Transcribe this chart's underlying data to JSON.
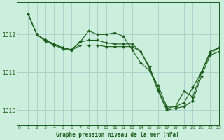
{
  "title": "Graphe pression niveau de la mer (hPa)",
  "bg_color": "#cceedd",
  "grid_color": "#aacccc",
  "line_color": "#1a5c1a",
  "marker_color": "#1a5c1a",
  "xlim": [
    -0.3,
    23
  ],
  "ylim": [
    1009.6,
    1012.85
  ],
  "yticks": [
    1010,
    1011,
    1012
  ],
  "xticks": [
    0,
    1,
    2,
    3,
    4,
    5,
    6,
    7,
    8,
    9,
    10,
    11,
    12,
    13,
    14,
    15,
    16,
    17,
    18,
    19,
    20,
    21,
    22,
    23
  ],
  "series1_x": [
    1,
    2,
    3,
    4,
    5,
    6,
    7,
    8,
    9,
    10,
    11,
    12,
    13,
    14,
    15,
    16,
    17,
    18,
    19,
    20,
    21,
    22,
    23
  ],
  "series1_y": [
    1012.55,
    1012.0,
    1011.85,
    1011.75,
    1011.65,
    1011.6,
    1011.8,
    1012.1,
    1012.0,
    1012.0,
    1012.05,
    1011.95,
    1011.6,
    1011.25,
    1011.05,
    1010.65,
    1010.1,
    1010.1,
    1010.2,
    1010.6,
    1011.0,
    1011.55,
    1011.65
  ],
  "series2_x": [
    1,
    2,
    3,
    4,
    5,
    6,
    7,
    8,
    9,
    10,
    11,
    12,
    13,
    14,
    15,
    16,
    17,
    18,
    19,
    20,
    21,
    22,
    23
  ],
  "series2_y": [
    1012.55,
    1012.0,
    1011.85,
    1011.75,
    1011.65,
    1011.6,
    1011.8,
    1011.85,
    1011.85,
    1011.78,
    1011.75,
    1011.75,
    1011.75,
    1011.55,
    1011.15,
    1010.55,
    1010.05,
    1010.1,
    1010.5,
    1010.35,
    1011.0,
    1011.5,
    1011.65
  ],
  "series3_x": [
    1,
    2,
    3,
    4,
    5,
    6,
    7,
    8,
    9,
    10,
    11,
    12,
    13,
    14,
    15,
    16,
    17,
    18,
    19,
    20,
    21,
    22,
    23
  ],
  "series3_y": [
    1012.55,
    1012.0,
    1011.82,
    1011.72,
    1011.62,
    1011.58,
    1011.72,
    1011.72,
    1011.72,
    1011.68,
    1011.68,
    1011.68,
    1011.68,
    1011.55,
    1011.1,
    1010.5,
    1010.0,
    1010.05,
    1010.1,
    1010.25,
    1010.9,
    1011.45,
    1011.55
  ]
}
